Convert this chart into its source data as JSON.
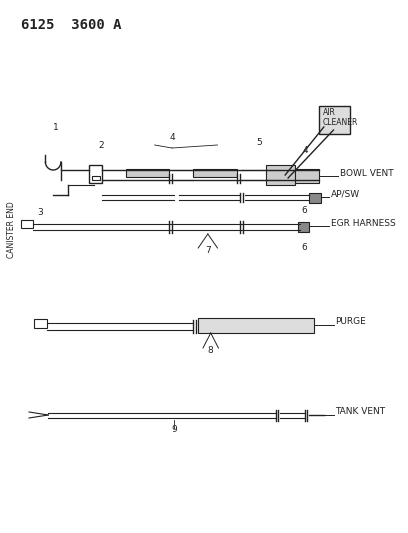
{
  "title": "6125  3600 A",
  "bg_color": "#ffffff",
  "line_color": "#222222",
  "title_fontsize": 10,
  "label_fontsize": 6.5,
  "number_fontsize": 6.5,
  "labels": {
    "AIR_CLEANER": "AIR\nCLEANER",
    "BOWL_VENT": "BOWL VENT",
    "AP_SW": "AP/SW",
    "EGR_HARNESS": "EGR HARNESS",
    "PURGE": "PURGE",
    "TANK_VENT": "TANK VENT",
    "CANISTER_END": "CANISTER END"
  }
}
